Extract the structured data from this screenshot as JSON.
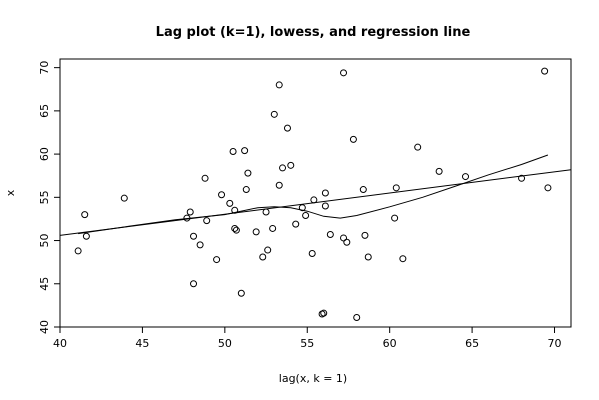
{
  "chart_data": {
    "type": "scatter",
    "title": "Lag plot (k=1), lowess, and regression line",
    "xlabel": "lag(x, k = 1)",
    "ylabel": "x",
    "xlim": [
      40,
      71
    ],
    "ylim": [
      40,
      71
    ],
    "xticks": [
      40,
      45,
      50,
      55,
      60,
      65,
      70
    ],
    "yticks": [
      40,
      45,
      50,
      55,
      60,
      65,
      70
    ],
    "grid": false,
    "points": [
      {
        "x": 41.1,
        "y": 48.8
      },
      {
        "x": 41.5,
        "y": 53.0
      },
      {
        "x": 41.6,
        "y": 50.5
      },
      {
        "x": 43.9,
        "y": 54.9
      },
      {
        "x": 47.7,
        "y": 52.6
      },
      {
        "x": 47.9,
        "y": 53.3
      },
      {
        "x": 48.1,
        "y": 45.0
      },
      {
        "x": 48.1,
        "y": 50.5
      },
      {
        "x": 48.5,
        "y": 49.5
      },
      {
        "x": 48.8,
        "y": 57.2
      },
      {
        "x": 48.9,
        "y": 52.3
      },
      {
        "x": 49.5,
        "y": 47.8
      },
      {
        "x": 49.8,
        "y": 55.3
      },
      {
        "x": 50.3,
        "y": 54.3
      },
      {
        "x": 50.5,
        "y": 60.3
      },
      {
        "x": 50.6,
        "y": 51.4
      },
      {
        "x": 50.6,
        "y": 53.5
      },
      {
        "x": 50.7,
        "y": 51.2
      },
      {
        "x": 51.0,
        "y": 43.9
      },
      {
        "x": 51.2,
        "y": 60.4
      },
      {
        "x": 51.3,
        "y": 55.9
      },
      {
        "x": 51.4,
        "y": 57.8
      },
      {
        "x": 51.9,
        "y": 51.0
      },
      {
        "x": 52.3,
        "y": 48.1
      },
      {
        "x": 52.5,
        "y": 53.3
      },
      {
        "x": 52.6,
        "y": 48.9
      },
      {
        "x": 52.9,
        "y": 51.4
      },
      {
        "x": 53.0,
        "y": 64.6
      },
      {
        "x": 53.3,
        "y": 68.0
      },
      {
        "x": 53.3,
        "y": 56.4
      },
      {
        "x": 53.5,
        "y": 58.4
      },
      {
        "x": 53.8,
        "y": 63.0
      },
      {
        "x": 54.0,
        "y": 58.7
      },
      {
        "x": 54.3,
        "y": 51.9
      },
      {
        "x": 54.7,
        "y": 53.8
      },
      {
        "x": 54.9,
        "y": 52.9
      },
      {
        "x": 55.3,
        "y": 48.5
      },
      {
        "x": 55.4,
        "y": 54.7
      },
      {
        "x": 55.9,
        "y": 41.5
      },
      {
        "x": 56.0,
        "y": 41.6
      },
      {
        "x": 56.1,
        "y": 54.0
      },
      {
        "x": 56.1,
        "y": 55.5
      },
      {
        "x": 56.4,
        "y": 50.7
      },
      {
        "x": 57.2,
        "y": 69.4
      },
      {
        "x": 57.2,
        "y": 50.3
      },
      {
        "x": 57.4,
        "y": 49.8
      },
      {
        "x": 57.8,
        "y": 61.7
      },
      {
        "x": 58.0,
        "y": 41.1
      },
      {
        "x": 58.4,
        "y": 55.9
      },
      {
        "x": 58.5,
        "y": 50.6
      },
      {
        "x": 58.7,
        "y": 48.1
      },
      {
        "x": 60.3,
        "y": 52.6
      },
      {
        "x": 60.4,
        "y": 56.1
      },
      {
        "x": 60.8,
        "y": 47.9
      },
      {
        "x": 61.7,
        "y": 60.8
      },
      {
        "x": 63.0,
        "y": 58.0
      },
      {
        "x": 64.6,
        "y": 57.4
      },
      {
        "x": 68.0,
        "y": 57.2
      },
      {
        "x": 69.4,
        "y": 69.6
      },
      {
        "x": 69.6,
        "y": 56.1
      }
    ],
    "series": [
      {
        "type": "lowess",
        "points": [
          {
            "x": 41.1,
            "y": 50.8
          },
          {
            "x": 44,
            "y": 51.6
          },
          {
            "x": 47,
            "y": 52.4
          },
          {
            "x": 50,
            "y": 53.0
          },
          {
            "x": 52,
            "y": 53.8
          },
          {
            "x": 53,
            "y": 53.9
          },
          {
            "x": 54,
            "y": 53.8
          },
          {
            "x": 55,
            "y": 53.4
          },
          {
            "x": 56,
            "y": 52.8
          },
          {
            "x": 57,
            "y": 52.6
          },
          {
            "x": 58,
            "y": 52.9
          },
          {
            "x": 60,
            "y": 53.9
          },
          {
            "x": 62,
            "y": 55.0
          },
          {
            "x": 64,
            "y": 56.3
          },
          {
            "x": 66,
            "y": 57.6
          },
          {
            "x": 68,
            "y": 58.8
          },
          {
            "x": 69.6,
            "y": 59.9
          }
        ]
      },
      {
        "type": "regression",
        "points": [
          {
            "x": 40,
            "y": 50.6
          },
          {
            "x": 71,
            "y": 58.2
          }
        ]
      }
    ]
  }
}
